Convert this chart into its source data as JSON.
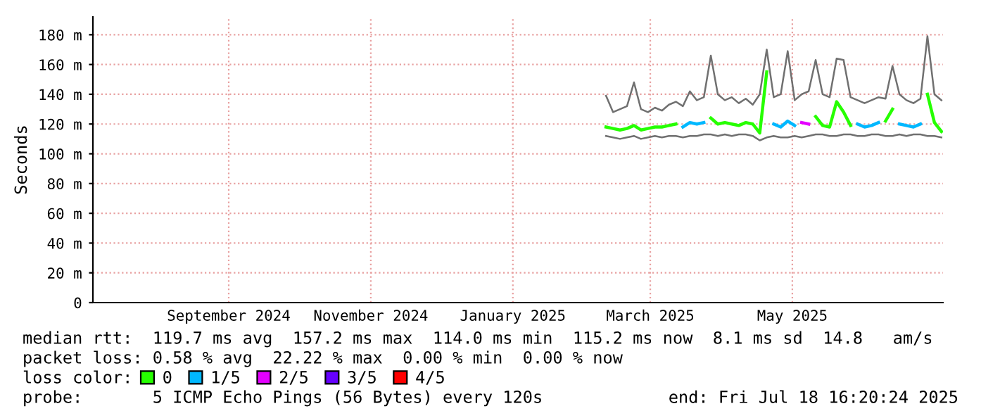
{
  "chart_data": {
    "type": "line",
    "ylabel": "Seconds",
    "legend_title": "loss color:",
    "legend": "bottom",
    "grid": true,
    "xlim": [
      "2024-07-18T16:20",
      "2025-07-18T16:20"
    ],
    "xticks": [
      {
        "value": "2024-09-15",
        "label": "September 2024"
      },
      {
        "value": "2024-11-15",
        "label": "November 2024"
      },
      {
        "value": "2025-01-15",
        "label": "January 2025"
      },
      {
        "value": "2025-03-15",
        "label": "March 2025"
      },
      {
        "value": "2025-05-15",
        "label": "May 2025"
      }
    ],
    "ylim": [
      0,
      192
    ],
    "yticks": [
      0,
      {
        "value": 20,
        "label": "20 m"
      },
      {
        "value": 40,
        "label": "40 m"
      },
      {
        "value": 60,
        "label": "60 m"
      },
      {
        "value": 80,
        "label": "80 m"
      },
      {
        "value": 100,
        "label": "100 m"
      },
      {
        "value": 120,
        "label": "120 m"
      },
      {
        "value": 140,
        "label": "140 m"
      },
      {
        "value": 160,
        "label": "160 m"
      },
      {
        "value": 180,
        "label": "180 m"
      }
    ],
    "x": [
      "2025-02-24",
      "2025-02-27",
      "2025-03-02",
      "2025-03-05",
      "2025-03-08",
      "2025-03-11",
      "2025-03-14",
      "2025-03-17",
      "2025-03-20",
      "2025-03-23",
      "2025-03-26",
      "2025-03-29",
      "2025-04-01",
      "2025-04-04",
      "2025-04-07",
      "2025-04-10",
      "2025-04-13",
      "2025-04-16",
      "2025-04-19",
      "2025-04-22",
      "2025-04-25",
      "2025-04-28",
      "2025-05-01",
      "2025-05-04",
      "2025-05-07",
      "2025-05-10",
      "2025-05-13",
      "2025-05-16",
      "2025-05-19",
      "2025-05-22",
      "2025-05-25",
      "2025-05-28",
      "2025-05-31",
      "2025-06-03",
      "2025-06-06",
      "2025-06-09",
      "2025-06-12",
      "2025-06-15",
      "2025-06-18",
      "2025-06-21",
      "2025-06-24",
      "2025-06-27",
      "2025-06-30",
      "2025-07-03",
      "2025-07-06",
      "2025-07-09",
      "2025-07-12",
      "2025-07-15",
      "2025-07-18"
    ],
    "series": [
      {
        "color": "#707070",
        "values": [
          139,
          128,
          130,
          132,
          148,
          130,
          128,
          131,
          129,
          133,
          135,
          132,
          142,
          136,
          138,
          166,
          140,
          136,
          138,
          134,
          137,
          133,
          140,
          170,
          138,
          140,
          169,
          136,
          140,
          142,
          163,
          140,
          138,
          164,
          163,
          138,
          136,
          134,
          136,
          138,
          137,
          159,
          140,
          136,
          134,
          137,
          179,
          140,
          136
        ]
      },
      {
        "color": "#707070",
        "values": [
          112,
          111,
          110,
          111,
          112,
          110,
          111,
          112,
          111,
          112,
          112,
          111,
          112,
          112,
          113,
          113,
          112,
          113,
          112,
          113,
          113,
          112,
          109,
          111,
          112,
          111,
          111,
          112,
          111,
          112,
          113,
          113,
          112,
          112,
          113,
          113,
          112,
          112,
          113,
          113,
          112,
          112,
          113,
          112,
          113,
          113,
          112,
          112,
          111
        ]
      },
      {
        "name": "0",
        "color": "#26ff00",
        "values": [
          118,
          117,
          116,
          117,
          119,
          116,
          117,
          118,
          118,
          119,
          120,
          null,
          null,
          null,
          null,
          124,
          120,
          121,
          120,
          119,
          121,
          120,
          114,
          155,
          null,
          null,
          null,
          null,
          null,
          null,
          125,
          119,
          118,
          135,
          128,
          119,
          null,
          null,
          null,
          null,
          122,
          130,
          null,
          null,
          null,
          null,
          140,
          121,
          115
        ]
      },
      {
        "name": "1/5",
        "color": "#00b8ff",
        "values": [
          null,
          null,
          null,
          null,
          null,
          null,
          null,
          null,
          null,
          null,
          null,
          118,
          121,
          120,
          121,
          null,
          null,
          null,
          null,
          null,
          null,
          null,
          null,
          null,
          120,
          118,
          122,
          119,
          null,
          null,
          null,
          null,
          null,
          null,
          null,
          null,
          120,
          118,
          119,
          121,
          null,
          null,
          120,
          119,
          118,
          120,
          null,
          null,
          null
        ]
      },
      {
        "name": "2/5",
        "color": "#e400ff",
        "values": [
          null,
          null,
          null,
          null,
          null,
          null,
          null,
          null,
          null,
          null,
          null,
          null,
          null,
          null,
          null,
          null,
          null,
          null,
          null,
          null,
          null,
          null,
          null,
          null,
          null,
          null,
          null,
          null,
          121,
          120,
          null,
          null,
          null,
          null,
          null,
          null,
          null,
          null,
          null,
          null,
          null,
          null,
          null,
          null,
          null,
          null,
          null,
          null,
          null
        ]
      },
      {
        "name": "3/5",
        "color": "#6600ff",
        "values": [
          null,
          null,
          null,
          null,
          null,
          null,
          null,
          null,
          null,
          null,
          null,
          null,
          null,
          null,
          null,
          null,
          null,
          null,
          null,
          null,
          null,
          null,
          null,
          null,
          null,
          null,
          null,
          null,
          null,
          null,
          null,
          null,
          null,
          null,
          null,
          null,
          null,
          null,
          null,
          null,
          null,
          null,
          null,
          null,
          null,
          null,
          null,
          null,
          null
        ]
      },
      {
        "name": "4/5",
        "color": "#ff0000",
        "values": [
          null,
          null,
          null,
          null,
          null,
          null,
          null,
          null,
          null,
          null,
          null,
          null,
          null,
          null,
          null,
          null,
          null,
          null,
          null,
          null,
          null,
          null,
          null,
          null,
          null,
          null,
          null,
          null,
          null,
          null,
          null,
          null,
          null,
          null,
          null,
          null,
          null,
          null,
          null,
          null,
          null,
          null,
          null,
          null,
          null,
          null,
          null,
          null,
          null
        ]
      }
    ],
    "annotations": [
      "median rtt:  119.7 ms avg  157.2 ms max  114.0 ms min  115.2 ms now  8.1 ms sd  14.8   am/s",
      "packet loss: 0.58 % avg  22.22 % max  0.00 % min  0.00 % now",
      "probe:       5 ICMP Echo Pings (56 Bytes) every 120s",
      "end: Fri Jul 18 16:20:24 2025"
    ]
  }
}
